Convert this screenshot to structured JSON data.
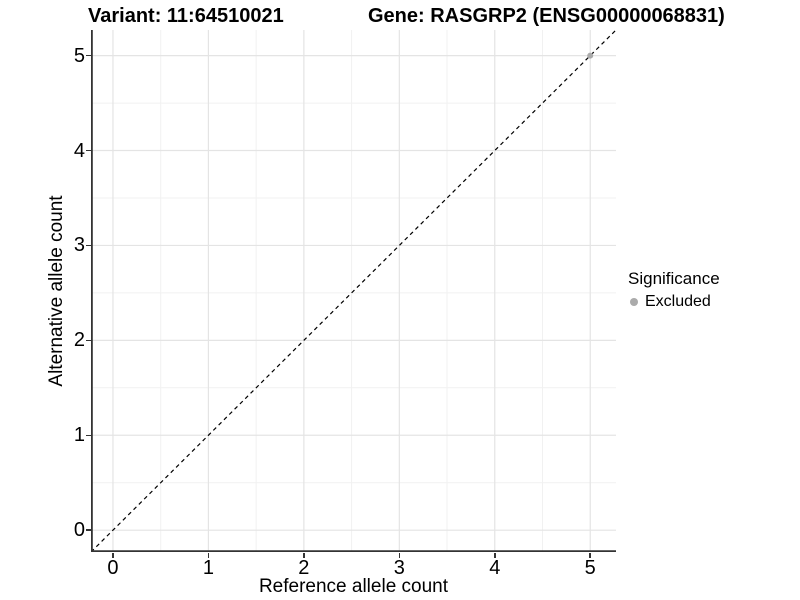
{
  "figure": {
    "titles": {
      "variant": "Variant: 11:64510021",
      "gene": "Gene: RASGRP2 (ENSG00000068831)"
    }
  },
  "axes": {
    "x": {
      "label": "Reference allele count"
    },
    "y": {
      "label": "Alternative allele count"
    }
  },
  "legend": {
    "title": "Significance",
    "items": [
      {
        "label": "Excluded",
        "color": "#ababab"
      }
    ]
  },
  "colors": {
    "point": "#ababab",
    "major_grid": "#e4e4e4",
    "minor_grid": "#f1f1f1",
    "axis_line": "#333333",
    "reference_line": "#000000",
    "background": "#ffffff"
  },
  "chart_data": {
    "type": "scatter",
    "titles": [
      "Variant: 11:64510021",
      "Gene: RASGRP2 (ENSG00000068831)"
    ],
    "xlabel": "Reference allele count",
    "ylabel": "Alternative allele count",
    "x_ticks": [
      0,
      1,
      2,
      3,
      4,
      5
    ],
    "y_ticks": [
      0,
      1,
      2,
      3,
      4,
      5
    ],
    "xlim": [
      -0.23,
      5.27
    ],
    "ylim": [
      -0.23,
      5.27
    ],
    "grid": "major+minor",
    "legend_position": "right",
    "series": [
      {
        "name": "Excluded",
        "color": "#ababab",
        "points": [
          {
            "x": 5,
            "y": 5
          }
        ]
      }
    ],
    "reference_line": {
      "slope": 1,
      "intercept": 0,
      "style": "dashed",
      "color": "#000000"
    }
  }
}
